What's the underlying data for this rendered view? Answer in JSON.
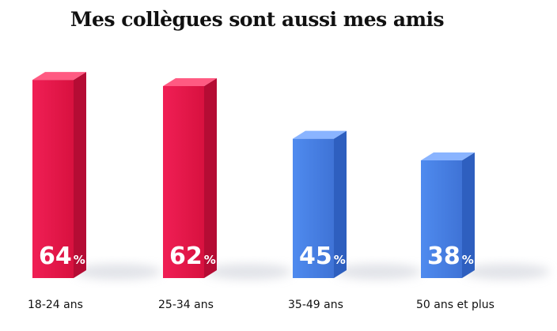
{
  "chart_data": {
    "type": "bar",
    "title": "Mes collègues sont aussi mes amis",
    "categories": [
      "18-24 ans",
      "25-34 ans",
      "35-49 ans",
      "50 ans et plus"
    ],
    "values": [
      64,
      62,
      45,
      38
    ],
    "value_unit": "%",
    "colors": [
      "#e8174a",
      "#e8174a",
      "#4a80e0",
      "#4a80e0"
    ],
    "xlabel": "",
    "ylabel": "",
    "grid": false,
    "legend": "none"
  }
}
